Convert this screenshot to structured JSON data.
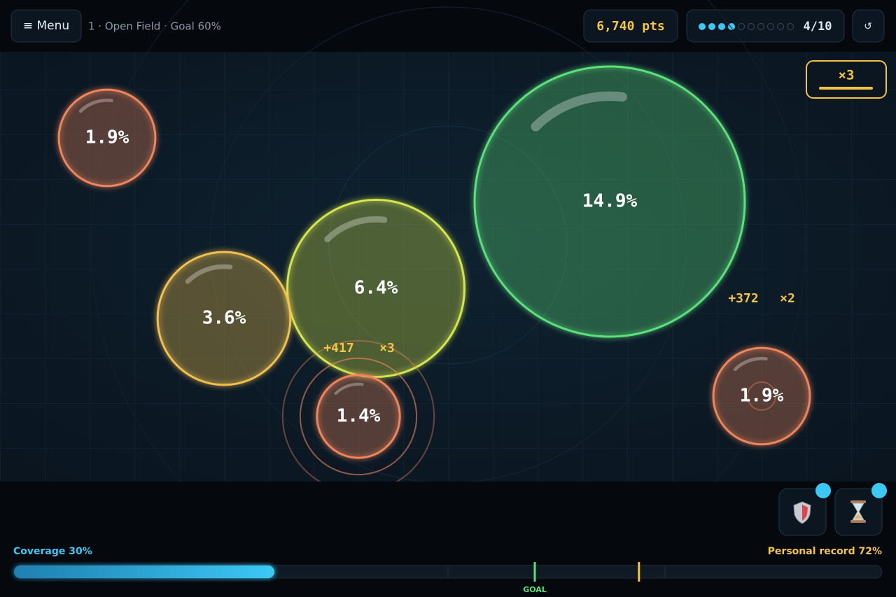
{
  "header": {
    "menu": "≡ Menu",
    "level": "1 · Open Field · Goal 60%",
    "score": "6,740 pts",
    "round": "4/10",
    "reset": "↺"
  },
  "combo": "×3",
  "bubbles": [
    {
      "label": "1.9%",
      "value": 1.9,
      "color": "#f0845a"
    },
    {
      "label": "14.9%",
      "value": 14.9,
      "color": "#5be07a"
    },
    {
      "label": "6.4%",
      "value": 6.4,
      "color": "#d4e64a"
    },
    {
      "label": "3.6%",
      "value": 3.6,
      "color": "#f2c04e"
    },
    {
      "label": "1.4%",
      "value": 1.4,
      "color": "#f0845a"
    },
    {
      "label": "1.9%",
      "value": 1.9,
      "color": "#f0845a"
    }
  ],
  "popups": [
    {
      "points": "+417",
      "multiplier": "×3"
    },
    {
      "points": "+372",
      "multiplier": "×2"
    }
  ],
  "progress": {
    "coverage": {
      "label": "Coverage 30%",
      "value": 30
    },
    "goal": {
      "label": "GOAL",
      "value": 60
    },
    "record": {
      "label": "Personal record 72%",
      "value": 72
    }
  }
}
